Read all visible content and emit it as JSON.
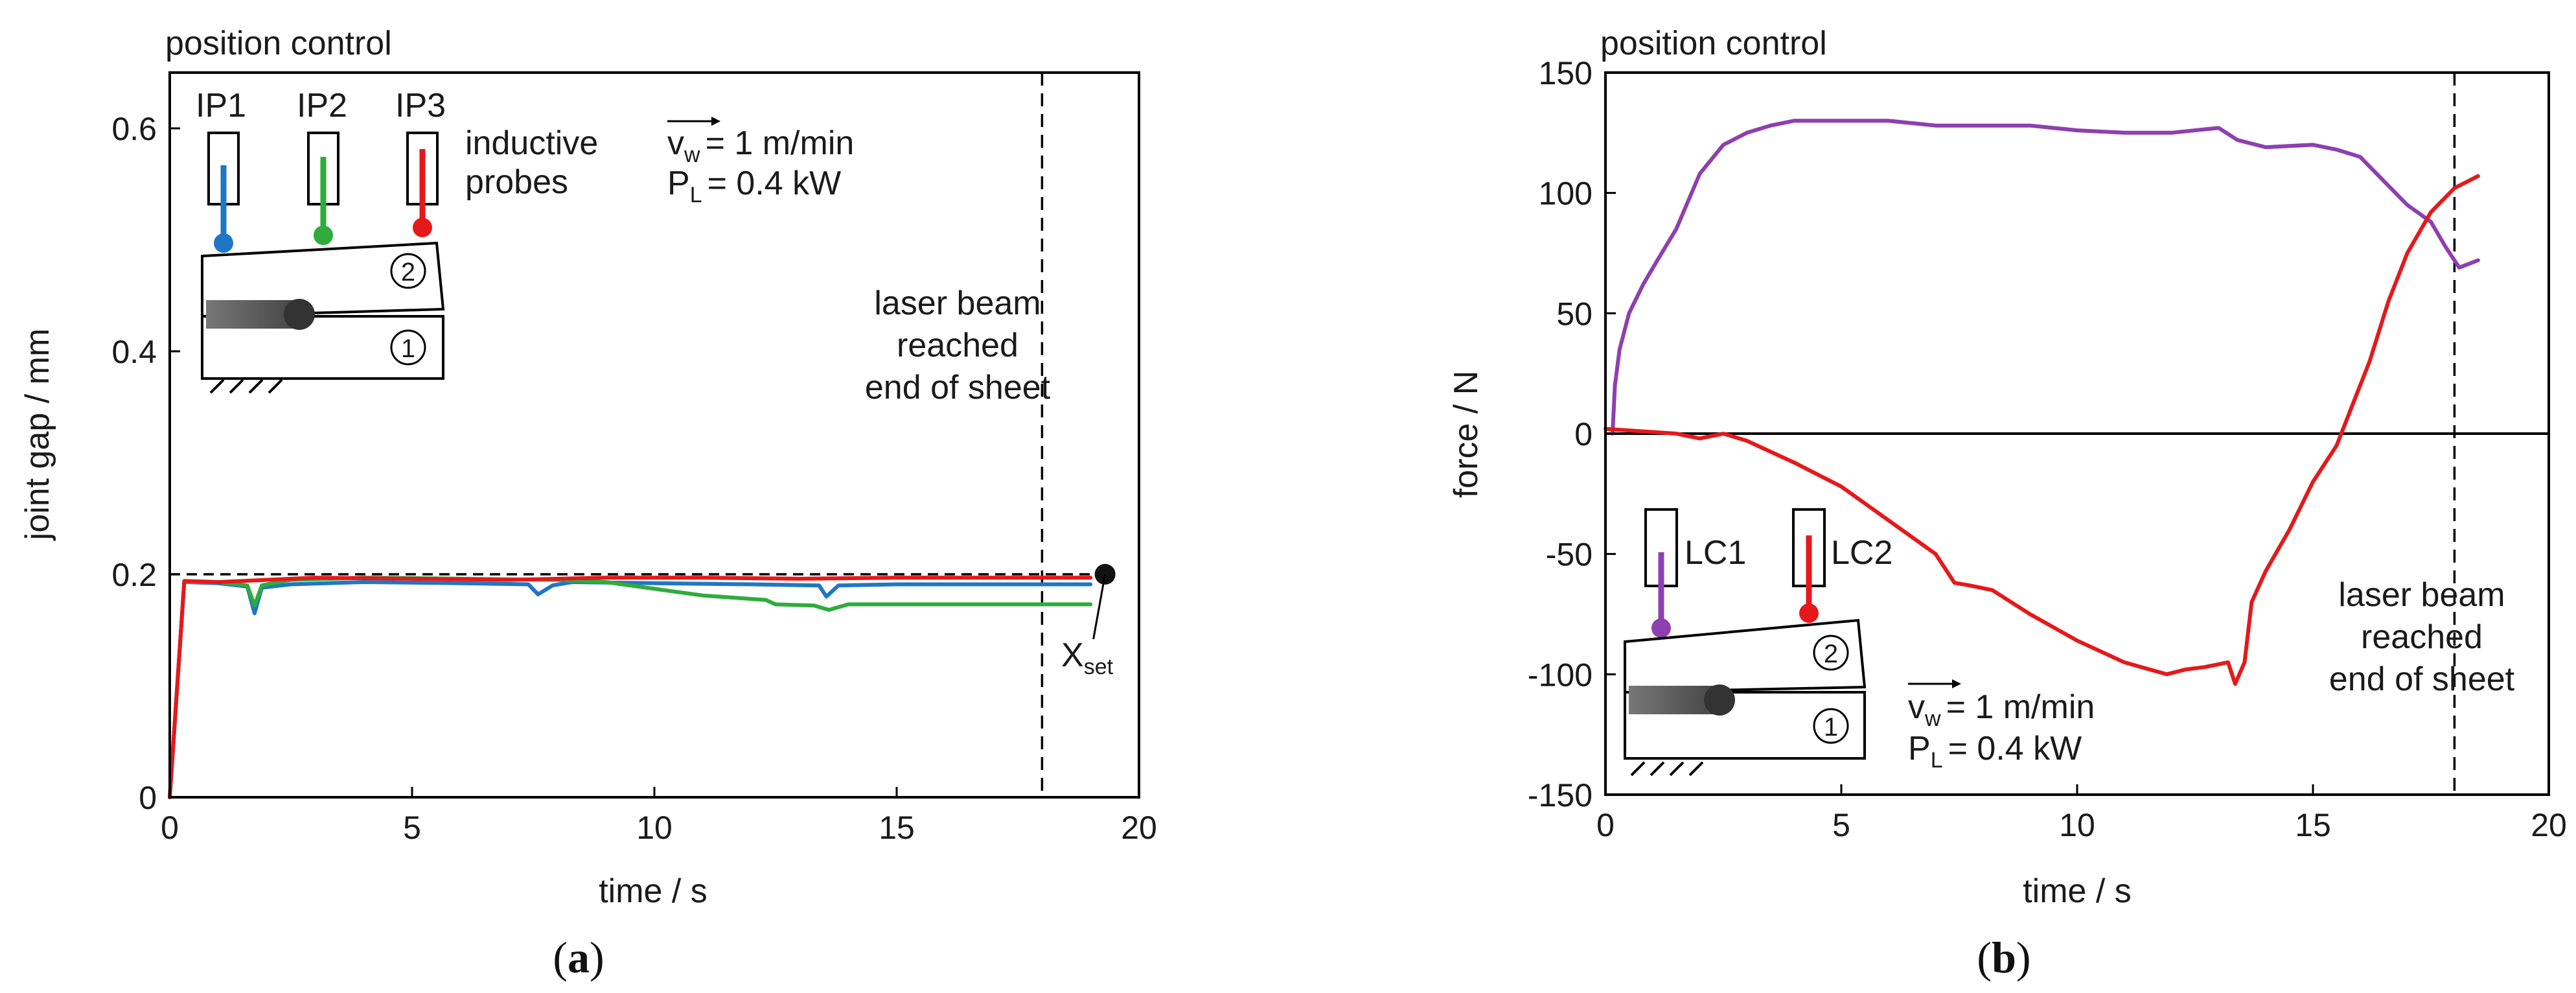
{
  "colors": {
    "blue": "#1f77c4",
    "green": "#2eac3c",
    "red": "#e5191b",
    "purple": "#8e3fb0",
    "black": "#111111"
  },
  "chart_data": [
    {
      "type": "line",
      "panel_label": "(a)",
      "corner_title": "position control",
      "xlabel": "time / s",
      "ylabel": "joint gap / mm",
      "xlim": [
        0,
        20
      ],
      "ylim": [
        0,
        0.65
      ],
      "xticks": [
        0,
        5,
        10,
        15,
        20
      ],
      "yticks": [
        0,
        0.2,
        0.4,
        0.6
      ],
      "xtick_labels": [
        "0",
        "5",
        "10",
        "15",
        "20"
      ],
      "ytick_labels": [
        "0",
        "0.2",
        "0.4",
        "0.6"
      ],
      "reference_line": {
        "y": 0.2,
        "label": "X",
        "label_sub": "set",
        "marker_x": 19.3
      },
      "vline": {
        "x": 18,
        "label_lines": [
          "laser beam",
          "reached",
          "end of sheet"
        ]
      },
      "params": {
        "v_main": "v",
        "v_sub": "w",
        "v_rest": "= 1 m/min",
        "p_main": "P",
        "p_sub": "L",
        "p_rest": "= 0.4 kW"
      },
      "probes": {
        "names": [
          "IP1",
          "IP2",
          "IP3"
        ],
        "caption_lines": [
          "inductive",
          "probes"
        ]
      },
      "sheet_labels": [
        "2",
        "1"
      ],
      "series": [
        {
          "name": "IP1",
          "color": "#1f77c4",
          "x": [
            0,
            0.3,
            1,
            1.6,
            1.75,
            1.9,
            2.5,
            4,
            6,
            7.4,
            7.6,
            7.9,
            8.3,
            10,
            12,
            13.4,
            13.55,
            13.8,
            15,
            17,
            19
          ],
          "y": [
            0,
            0.193,
            0.192,
            0.189,
            0.165,
            0.188,
            0.191,
            0.193,
            0.192,
            0.191,
            0.182,
            0.19,
            0.193,
            0.192,
            0.191,
            0.19,
            0.18,
            0.19,
            0.191,
            0.191,
            0.191
          ]
        },
        {
          "name": "IP2",
          "color": "#2eac3c",
          "x": [
            0,
            0.3,
            1,
            1.6,
            1.75,
            1.9,
            2.5,
            4,
            6,
            8,
            9,
            10,
            11,
            12.3,
            12.5,
            13.3,
            13.6,
            14,
            15,
            17,
            19
          ],
          "y": [
            0,
            0.193,
            0.193,
            0.19,
            0.172,
            0.19,
            0.195,
            0.197,
            0.196,
            0.195,
            0.193,
            0.187,
            0.181,
            0.177,
            0.173,
            0.172,
            0.168,
            0.173,
            0.173,
            0.173,
            0.173
          ]
        },
        {
          "name": "IP3",
          "color": "#e5191b",
          "x": [
            0,
            0.3,
            1,
            2,
            3,
            5,
            7,
            9,
            11,
            13,
            15,
            17,
            19
          ],
          "y": [
            0,
            0.194,
            0.193,
            0.195,
            0.197,
            0.196,
            0.195,
            0.197,
            0.197,
            0.196,
            0.197,
            0.197,
            0.197
          ]
        }
      ]
    },
    {
      "type": "line",
      "panel_label": "(b)",
      "corner_title": "position control",
      "xlabel": "time / s",
      "ylabel": "force / N",
      "xlim": [
        0,
        20
      ],
      "ylim": [
        -150,
        150
      ],
      "xticks": [
        0,
        5,
        10,
        15,
        20
      ],
      "yticks": [
        -150,
        -100,
        -50,
        0,
        50,
        100,
        150
      ],
      "xtick_labels": [
        "0",
        "5",
        "10",
        "15",
        "20"
      ],
      "ytick_labels": [
        "-150",
        "-100",
        "-50",
        "0",
        "50",
        "100",
        "150"
      ],
      "vline": {
        "x": 18,
        "label_lines": [
          "laser beam",
          "reached",
          "end of sheet"
        ]
      },
      "params": {
        "v_main": "v",
        "v_sub": "w",
        "v_rest": "= 1 m/min",
        "p_main": "P",
        "p_sub": "L",
        "p_rest": "= 0.4 kW"
      },
      "probes": {
        "names": [
          "LC1",
          "LC2"
        ]
      },
      "sheet_labels": [
        "2",
        "1"
      ],
      "series": [
        {
          "name": "LC1",
          "color": "#8e3fb0",
          "x": [
            0.15,
            0.2,
            0.3,
            0.5,
            0.8,
            1.1,
            1.5,
            2.0,
            2.5,
            3.0,
            3.5,
            4.0,
            5.0,
            6.0,
            7.0,
            8.0,
            9.0,
            10.0,
            11.0,
            12.0,
            13.0,
            13.4,
            14.0,
            15.0,
            15.5,
            16.0,
            16.5,
            17.0,
            17.5,
            17.8,
            18.1,
            18.5
          ],
          "y": [
            0,
            20,
            35,
            50,
            62,
            72,
            85,
            108,
            120,
            125,
            128,
            130,
            130,
            130,
            128,
            128,
            128,
            126,
            125,
            125,
            127,
            122,
            119,
            120,
            118,
            115,
            105,
            95,
            88,
            78,
            69,
            72
          ]
        },
        {
          "name": "LC2",
          "color": "#e5191b",
          "x": [
            0,
            1.5,
            2.0,
            2.5,
            3.0,
            4.0,
            5.0,
            6.0,
            7.0,
            7.4,
            7.7,
            8.2,
            9.0,
            10.0,
            11.0,
            11.9,
            12.3,
            12.7,
            13.2,
            13.35,
            13.55,
            13.7,
            14.0,
            14.5,
            15.0,
            15.5,
            15.8,
            16.2,
            16.6,
            17.0,
            17.5,
            18.0,
            18.5
          ],
          "y": [
            2,
            0,
            -2,
            0,
            -3,
            -12,
            -22,
            -36,
            -50,
            -62,
            -63,
            -65,
            -75,
            -86,
            -95,
            -100,
            -98,
            -97,
            -95,
            -104,
            -95,
            -70,
            -57,
            -40,
            -20,
            -5,
            10,
            30,
            55,
            75,
            92,
            102,
            107
          ]
        }
      ]
    }
  ]
}
